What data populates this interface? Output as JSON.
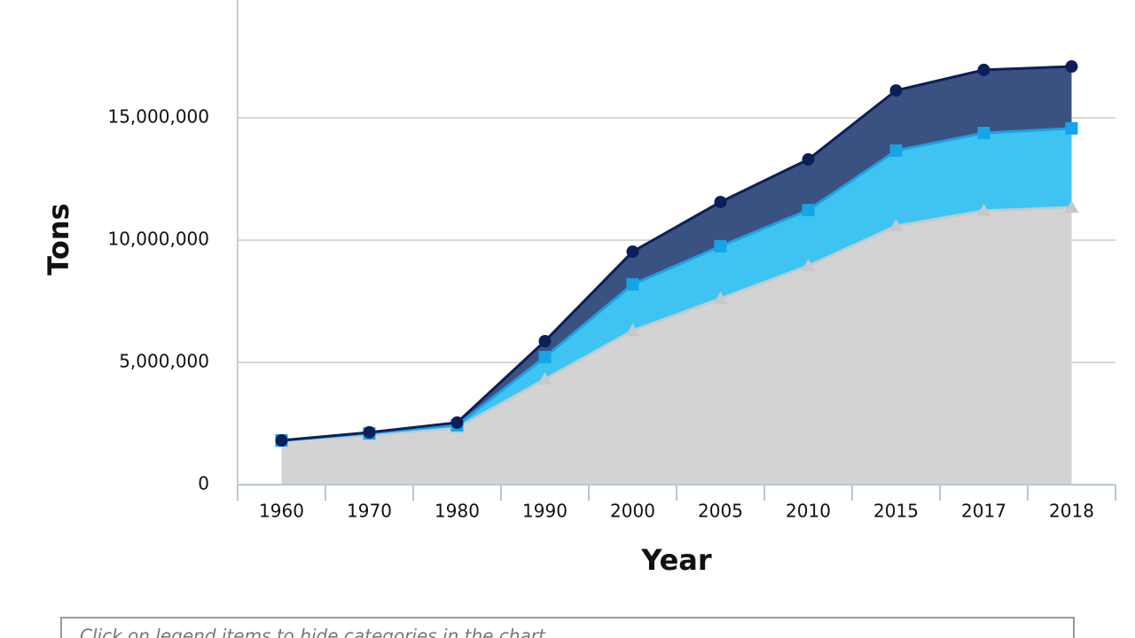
{
  "chart_data": {
    "type": "area",
    "stacked": true,
    "x_label": "Year",
    "y_label": "Tons",
    "categories": [
      "1960",
      "1970",
      "1980",
      "1990",
      "2000",
      "2005",
      "2010",
      "2015",
      "2017",
      "2018"
    ],
    "series": [
      {
        "color": "#d3d3d3",
        "stroke": "#c8c8c8",
        "marker": "triangle",
        "values": [
          1780000,
          2030000,
          2320000,
          4310000,
          6300000,
          7610000,
          8950000,
          10580000,
          11200000,
          11340000
        ]
      },
      {
        "color": "#3fc4f2",
        "stroke": "#14a5e6",
        "marker": "square",
        "values": [
          30000,
          70000,
          110000,
          910000,
          1890000,
          2140000,
          2280000,
          3080000,
          3180000,
          3230000
        ]
      },
      {
        "color": "#3a5281",
        "stroke": "#0a1f5c",
        "marker": "circle",
        "values": [
          0,
          40000,
          110000,
          650000,
          1340000,
          1810000,
          2070000,
          2460000,
          2580000,
          2530000
        ]
      }
    ],
    "ylim": [
      0,
      19818841
    ],
    "yticks": [
      0,
      {
        "value": 5000000,
        "label": "5,000,000"
      },
      {
        "value": 10000000,
        "label": "10,000,000"
      },
      {
        "value": 15000000,
        "label": "15,000,000"
      }
    ],
    "grid": true,
    "note": "Click on legend items to hide categories in the chart."
  }
}
